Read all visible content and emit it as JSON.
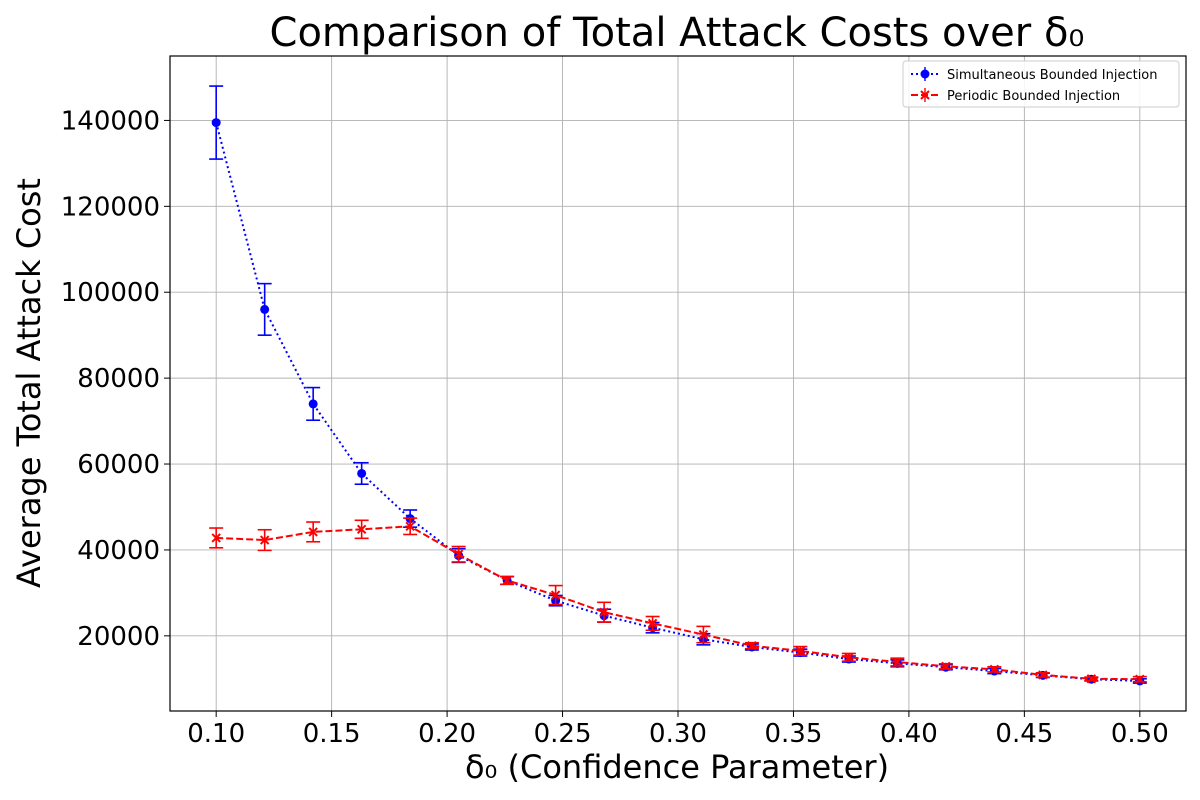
{
  "chart_data": {
    "type": "line",
    "title": "Comparison of Total Attack Costs over δ₀",
    "xlabel": "δ₀ (Confidence Parameter)",
    "ylabel": "Average Total Attack Cost",
    "xlim": [
      0.08,
      0.52
    ],
    "ylim": [
      2500,
      155000
    ],
    "xticks": [
      "0.10",
      "0.15",
      "0.20",
      "0.25",
      "0.30",
      "0.35",
      "0.40",
      "0.45",
      "0.50"
    ],
    "yticks": [
      "20000",
      "40000",
      "60000",
      "80000",
      "100000",
      "120000",
      "140000"
    ],
    "grid": true,
    "legend_position": "top-right",
    "x": [
      0.1,
      0.121,
      0.142,
      0.163,
      0.184,
      0.205,
      0.226,
      0.247,
      0.268,
      0.289,
      0.311,
      0.332,
      0.353,
      0.374,
      0.395,
      0.416,
      0.437,
      0.458,
      0.479,
      0.5
    ],
    "series": [
      {
        "name": "Simultaneous Bounded Injection",
        "color": "#0000ff",
        "linestyle": "dotted",
        "marker": "circle",
        "values": [
          139500,
          96000,
          74000,
          57800,
          47300,
          38700,
          32900,
          28200,
          24700,
          21900,
          19200,
          17400,
          16100,
          14600,
          13600,
          12700,
          11800,
          10800,
          9900,
          9500
        ],
        "errors": [
          8500,
          6000,
          3800,
          2500,
          2000,
          1600,
          900,
          1200,
          1500,
          1200,
          1300,
          700,
          800,
          700,
          800,
          600,
          600,
          500,
          400,
          500
        ]
      },
      {
        "name": "Periodic Bounded Injection",
        "color": "#ff0000",
        "linestyle": "dashed",
        "marker": "x",
        "values": [
          42800,
          42300,
          44200,
          44800,
          45500,
          39000,
          32900,
          29500,
          25500,
          22900,
          20300,
          17700,
          16500,
          15000,
          13900,
          12900,
          12200,
          10900,
          10000,
          9900
        ],
        "errors": [
          2300,
          2400,
          2300,
          2100,
          1900,
          1800,
          900,
          2200,
          2300,
          1600,
          1900,
          700,
          1000,
          900,
          900,
          600,
          600,
          500,
          400,
          600
        ]
      }
    ]
  }
}
